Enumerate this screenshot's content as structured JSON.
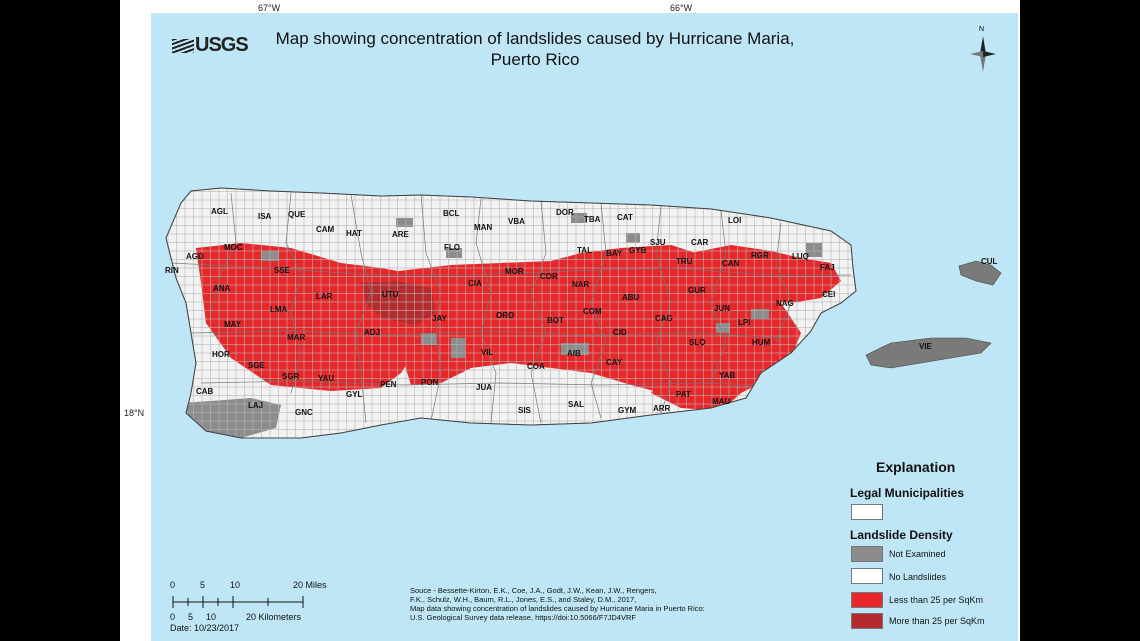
{
  "coordinates": {
    "lon_left": "67°W",
    "lon_right": "66°W",
    "lat": "18°N"
  },
  "logo": {
    "text": "USGS"
  },
  "title": {
    "line1": "Map showing concentration of landslides caused by Hurricane Maria,",
    "line2": "Puerto Rico"
  },
  "north_arrow": {
    "label": "N",
    "icon": "north-arrow-icon"
  },
  "municipalities": [
    "AGL",
    "ISA",
    "QUE",
    "CAM",
    "HAT",
    "ARE",
    "BCL",
    "MAN",
    "VBA",
    "DOR",
    "TBA",
    "CAT",
    "LOI",
    "AGD",
    "MOC",
    "RIN",
    "SSE",
    "ANA",
    "LAR",
    "UTU",
    "CIA",
    "MOR",
    "COR",
    "NAR",
    "TAL",
    "BAY",
    "GYB",
    "SJU",
    "CAR",
    "TRU",
    "CAN",
    "RGR",
    "LUQ",
    "FAJ",
    "CEI",
    "GUR",
    "JUN",
    "NAG",
    "LPI",
    "HUM",
    "ABU",
    "COM",
    "CAG",
    "CID",
    "BOT",
    "ORO",
    "LMA",
    "MAY",
    "MAR",
    "ADJ",
    "JAY",
    "VIL",
    "HOR",
    "SGE",
    "SGR",
    "YAU",
    "PEN",
    "PON",
    "JUA",
    "AIB",
    "COA",
    "CAY",
    "SLO",
    "YAB",
    "PAT",
    "ARR",
    "MAU",
    "GYM",
    "SAL",
    "SIS",
    "CAB",
    "LAJ",
    "GNC",
    "GYL",
    "CUL",
    "VIE",
    "FLO"
  ],
  "legend": {
    "heading": "Explanation",
    "section1": "Legal Municipalities",
    "section2": "Landslide Density",
    "items": [
      {
        "label": "Not Examined",
        "color": "#8c8c8c"
      },
      {
        "label": "No Landslides",
        "color": "#ffffff"
      },
      {
        "label": "Less than 25 per SqKm",
        "color": "#e8272a"
      },
      {
        "label": "More than 25 per SqKm",
        "color": "#b52a2c"
      }
    ]
  },
  "scale": {
    "miles_ticks": [
      "0",
      "5",
      "10",
      "20 Miles"
    ],
    "km_ticks": [
      "0",
      "5",
      "10",
      "20 Kilometers"
    ],
    "date": "Date: 10/23/2017"
  },
  "source": {
    "lines": [
      "Souce - Bessette-Kirton, E.K., Coe, J.A., Godt, J.W., Kean, J.W., Rengers,",
      "F.K., Schulz, W.H., Baum, R.L., Jones, E.S., and Staley, D.M., 2017,",
      "Map data showing concentration of landslides caused by Hurricane Maria in Puerto Rico:",
      "U.S. Geological Survey data release, https://doi:10.5066/F7JD4VRF"
    ]
  },
  "colors": {
    "ocean": "#bfe6f7",
    "land": "#f2f2f2",
    "not_examined": "#8c8c8c",
    "low_density": "#e8272a",
    "high_density": "#b52a2c"
  }
}
